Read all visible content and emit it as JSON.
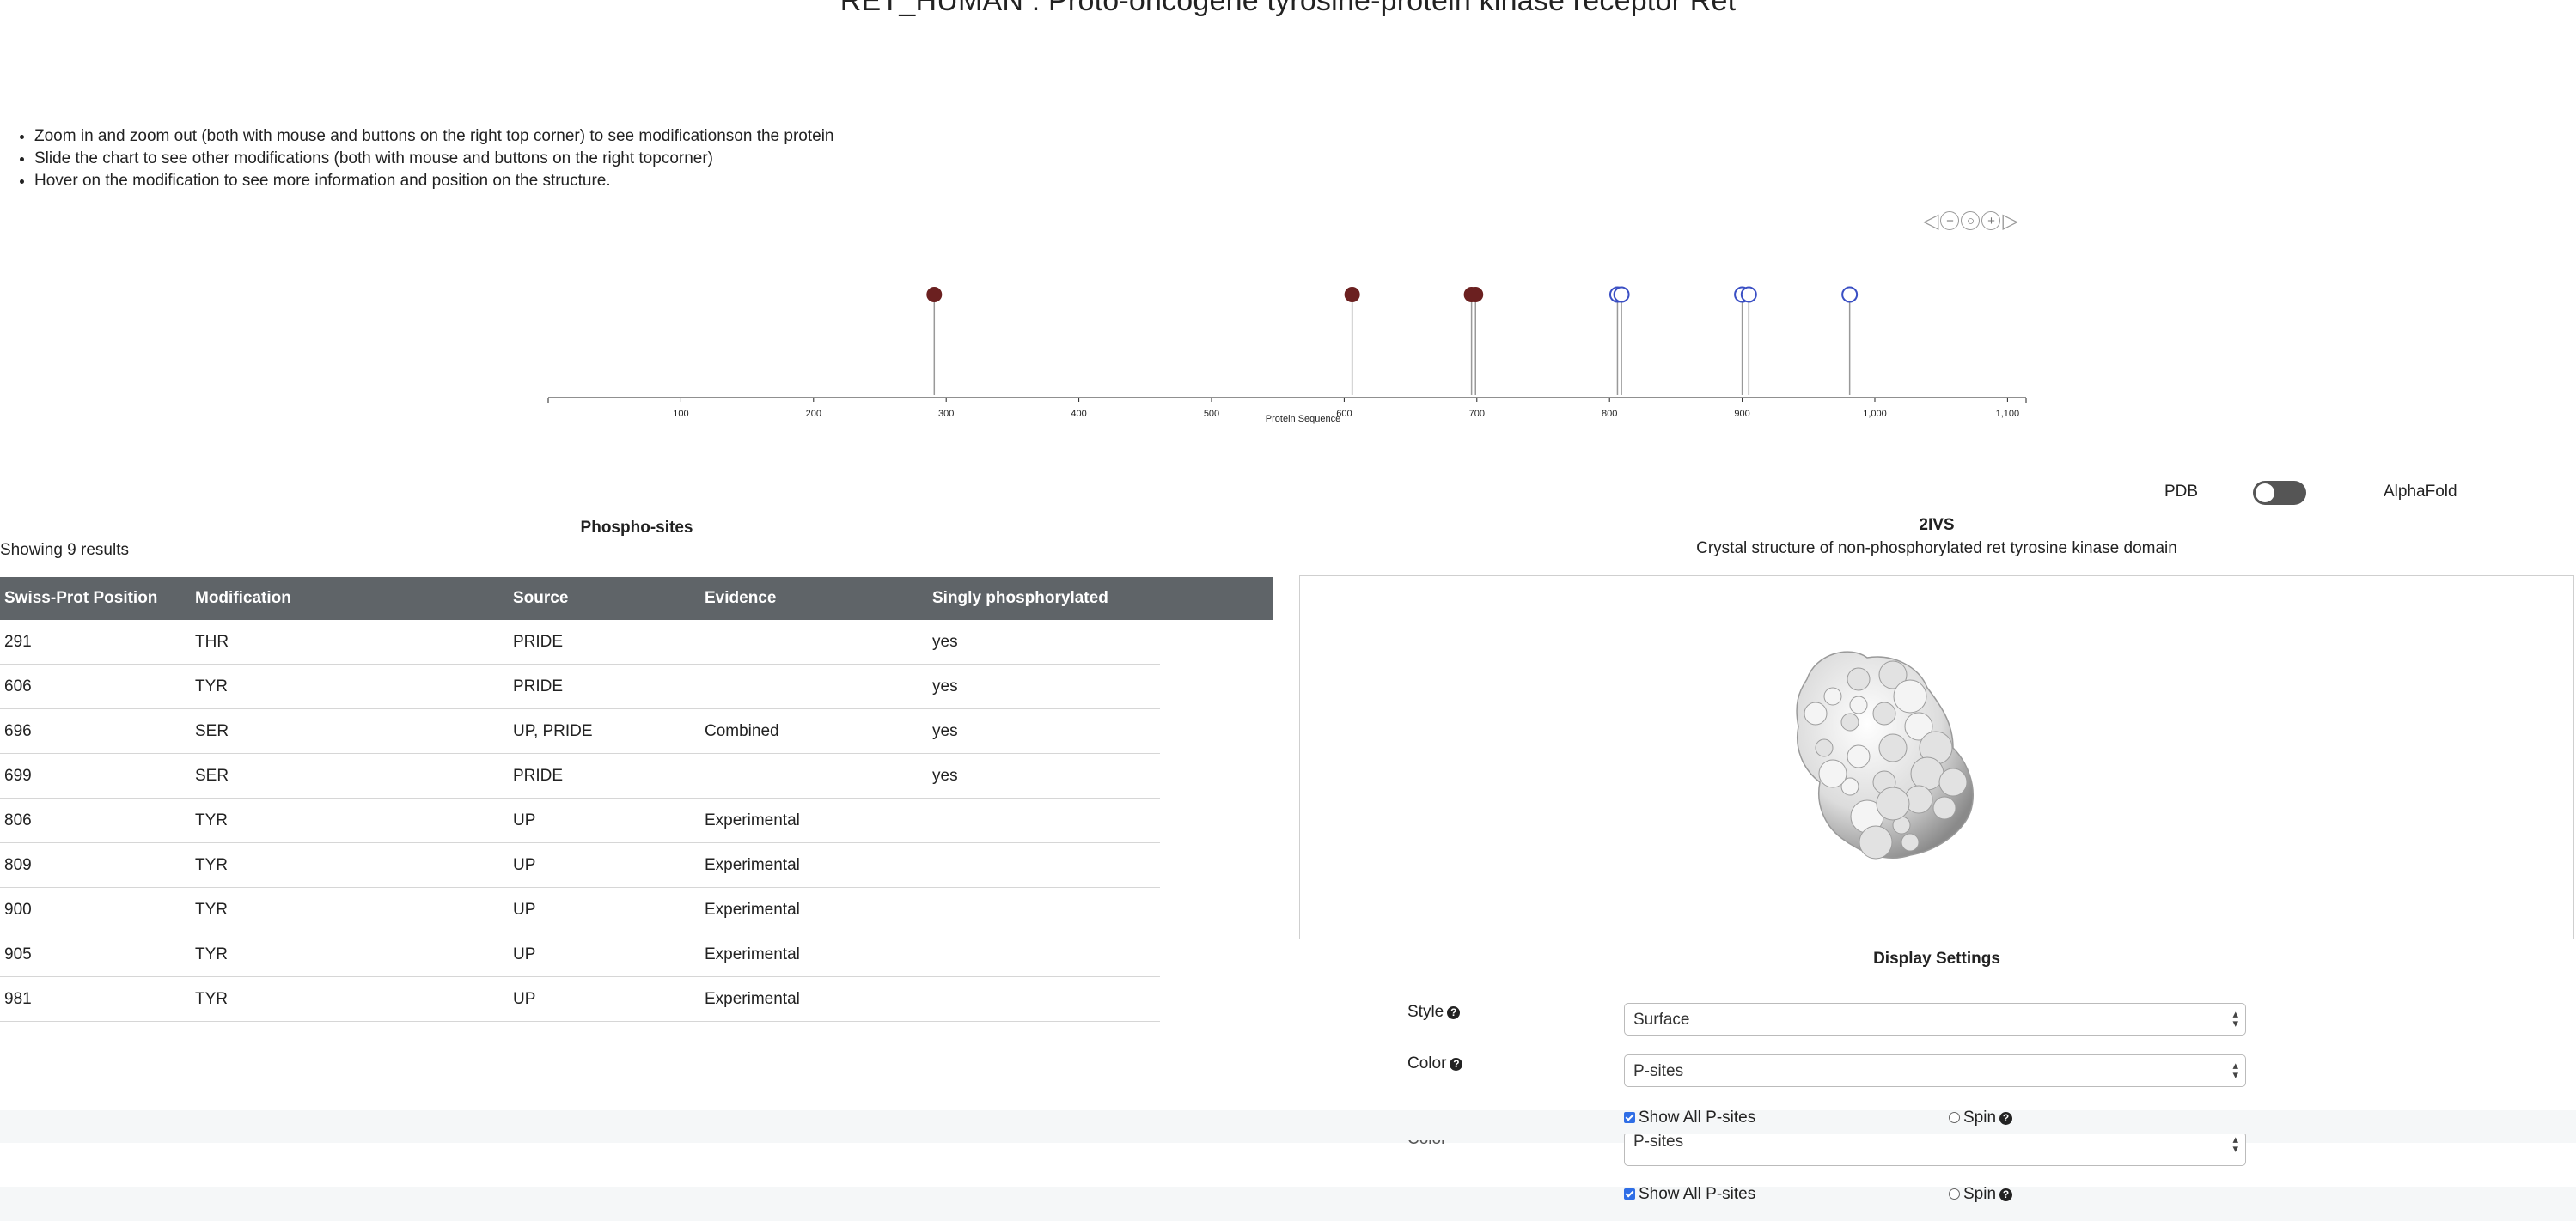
{
  "page": {
    "title": "RET_HUMAN : Proto-oncogene tyrosine-protein kinase receptor Ret",
    "instructions": [
      "Zoom in and zoom out (both with mouse and buttons on the right top corner) to see modificationson the protein",
      "Slide the chart to see other modifications (both with mouse and buttons on the right topcorner)",
      "Hover on the modification to see more information and position on the structure."
    ]
  },
  "zoom_controls": {
    "left": "◁",
    "minus": "−",
    "reset": "○",
    "plus": "+",
    "right": "▷"
  },
  "chart_data": {
    "type": "scatter",
    "xlabel": "Protein Sequence",
    "ylabel": "",
    "xlim": [
      0,
      1114
    ],
    "ticks": [
      "100",
      "200",
      "300",
      "400",
      "500",
      "600",
      "700",
      "800",
      "900",
      "1,000",
      "1,100"
    ],
    "series": [
      {
        "name": "",
        "marker": "filled",
        "color": "#6b2020",
        "x": [
          291,
          606,
          696,
          699
        ]
      },
      {
        "name": "",
        "marker": "hollow",
        "color": "#3a4fc4",
        "x": [
          806,
          809,
          900,
          905,
          981
        ]
      }
    ]
  },
  "toggle": {
    "left_label": "PDB",
    "right_label": "AlphaFold",
    "state": "PDB"
  },
  "table": {
    "title": "Phospho-sites",
    "results": "Showing 9 results",
    "columns": [
      "Swiss-Prot Position",
      "Modification",
      "Source",
      "Evidence",
      "Singly phosphorylated"
    ],
    "rows": [
      [
        "291",
        "THR",
        "PRIDE",
        "",
        "yes"
      ],
      [
        "606",
        "TYR",
        "PRIDE",
        "",
        "yes"
      ],
      [
        "696",
        "SER",
        "UP, PRIDE",
        "Combined",
        "yes"
      ],
      [
        "699",
        "SER",
        "PRIDE",
        "",
        "yes"
      ],
      [
        "806",
        "TYR",
        "UP",
        "Experimental",
        ""
      ],
      [
        "809",
        "TYR",
        "UP",
        "Experimental",
        ""
      ],
      [
        "900",
        "TYR",
        "UP",
        "Experimental",
        ""
      ],
      [
        "905",
        "TYR",
        "UP",
        "Experimental",
        ""
      ],
      [
        "981",
        "TYR",
        "UP",
        "Experimental",
        ""
      ]
    ]
  },
  "structure": {
    "id": "2IVS",
    "description": "Crystal structure of non-phosphorylated ret tyrosine kinase domain"
  },
  "settings": {
    "title": "Display Settings",
    "style_label": "Style",
    "style_value": "Surface",
    "color_label": "Color",
    "color_value": "P-sites",
    "show_all_label": "Show All P-sites",
    "show_all_checked": true,
    "spin_label": "Spin",
    "spin_checked": false,
    "ghost_color_label": "Color",
    "ghost_color_value": "P-sites",
    "ghost_show_all_label": "Show All P-sites",
    "ghost_spin_label": "Spin"
  },
  "colors": {
    "header": "#5f6468",
    "filled_site": "#6b2020",
    "hollow_site": "#3a4fc4"
  }
}
